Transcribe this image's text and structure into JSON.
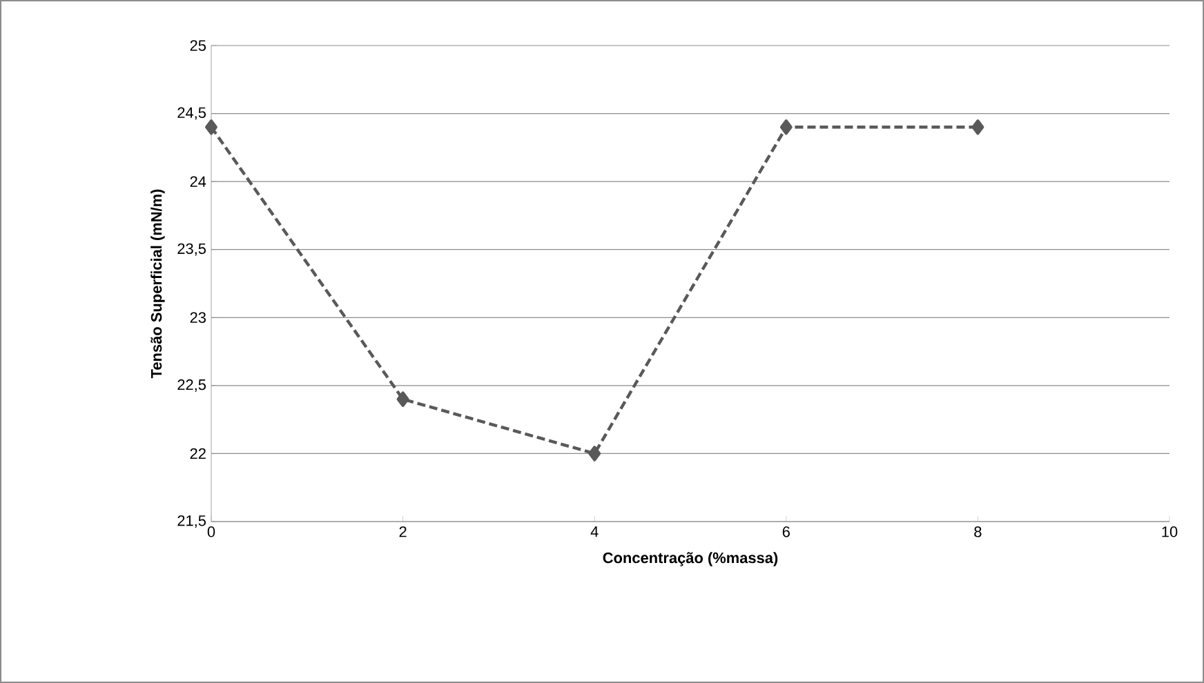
{
  "chart_data": {
    "type": "line",
    "xlabel": "Concentração (%massa)",
    "ylabel": "Tensão Superficial (mN/m)",
    "x": [
      0,
      2,
      4,
      6,
      8
    ],
    "series": [
      {
        "color": "#595959",
        "values": [
          24.4,
          22.4,
          22.0,
          24.4,
          24.4
        ]
      }
    ],
    "xlim": [
      0,
      10
    ],
    "xticks": [
      0,
      2,
      4,
      6,
      8,
      10
    ],
    "ylim": [
      21.5,
      25
    ],
    "yticks": [
      {
        "value": 21.5,
        "label": "21,5"
      },
      22,
      {
        "value": 22.5,
        "label": "22,5"
      },
      23,
      {
        "value": 23.5,
        "label": "23,5"
      },
      24,
      {
        "value": 24.5,
        "label": "24,5"
      },
      25
    ],
    "grid": "y",
    "marker": "diamond",
    "line_style": "dashed"
  }
}
